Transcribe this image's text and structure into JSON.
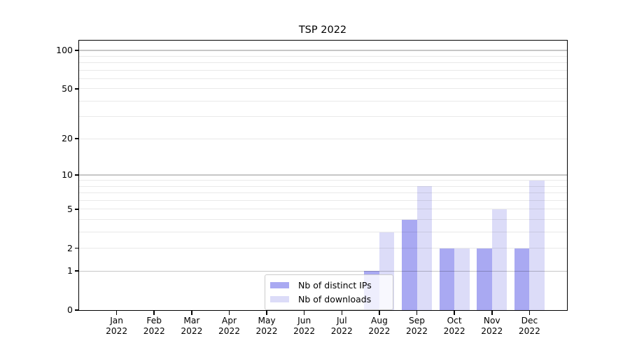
{
  "chart_data": {
    "type": "bar",
    "title": "TSP 2022",
    "categories": [
      "Jan",
      "Feb",
      "Mar",
      "Apr",
      "May",
      "Jun",
      "Jul",
      "Aug",
      "Sep",
      "Oct",
      "Nov",
      "Dec"
    ],
    "x_sub_label": "2022",
    "series": [
      {
        "name": "Nb of distinct IPs",
        "color": "#a9a9f2",
        "values": [
          0,
          0,
          0,
          0,
          0,
          0,
          0,
          1,
          4,
          2,
          2,
          2
        ]
      },
      {
        "name": "Nb of downloads",
        "color": "#dcdcf8",
        "values": [
          0,
          0,
          0,
          0,
          0,
          0,
          0,
          3,
          8,
          2,
          5,
          9
        ]
      }
    ],
    "y_scale": "log1p",
    "ylim": [
      0,
      119
    ],
    "y_ticks": [
      0,
      1,
      2,
      5,
      10,
      20,
      50,
      100
    ],
    "y_tick_labels": [
      "0",
      "1",
      "2",
      "5",
      "10",
      "20",
      "50",
      "100"
    ],
    "y_major_gridlines": [
      1,
      10,
      100
    ],
    "y_minor_gridlines": [
      2,
      3,
      4,
      5,
      6,
      7,
      8,
      9,
      20,
      30,
      40,
      50,
      60,
      70,
      80,
      90
    ],
    "grid": true,
    "legend": {
      "position": "lower center",
      "items": [
        "Nb of distinct IPs",
        "Nb of downloads"
      ]
    }
  },
  "colors": {
    "background": "#ffffff",
    "axis": "#000000",
    "legend_border": "#cccccc",
    "major_gridline": "#c6c6c6",
    "minor_gridline": "#eaeaea"
  }
}
